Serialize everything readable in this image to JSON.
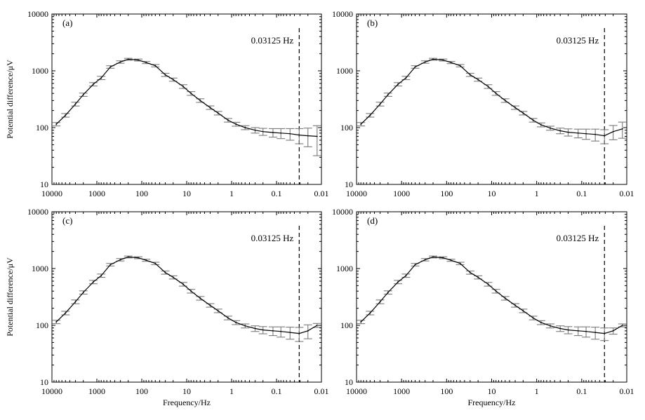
{
  "figure": {
    "ylabel": "Potential difference/μV",
    "xlabel": "Frequency/Hz"
  },
  "chart_data": [
    {
      "type": "line",
      "panel_label": "(a)",
      "xscale": "log",
      "yscale": "log",
      "xlim": [
        10000,
        0.01
      ],
      "ylim": [
        10,
        10000
      ],
      "xticks": [
        "10000",
        "1000",
        "100",
        "10",
        "1",
        "0.1",
        "0.01"
      ],
      "yticks": [
        "10",
        "100",
        "1000",
        "10000"
      ],
      "ylabel": "Potential difference/μV",
      "xlabel": "",
      "marker": {
        "x": 0.03125,
        "label": "0.03125 Hz"
      },
      "series": [
        {
          "x": [
            8000,
            5000,
            3000,
            2000,
            1200,
            800,
            500,
            300,
            200,
            120,
            80,
            50,
            30,
            20,
            12,
            8,
            5,
            3,
            2,
            1.2,
            0.8,
            0.5,
            0.3,
            0.2,
            0.12,
            0.08,
            0.05,
            0.03125,
            0.02,
            0.0125
          ],
          "y": [
            115,
            165,
            260,
            380,
            580,
            750,
            1170,
            1430,
            1600,
            1550,
            1400,
            1230,
            850,
            700,
            530,
            400,
            300,
            225,
            180,
            135,
            115,
            100,
            90,
            85,
            82,
            80,
            78,
            74,
            72,
            70
          ],
          "err": [
            8,
            12,
            20,
            25,
            40,
            50,
            60,
            70,
            60,
            60,
            60,
            60,
            55,
            45,
            40,
            30,
            22,
            16,
            13,
            10,
            9,
            8,
            10,
            12,
            14,
            16,
            18,
            22,
            26,
            38
          ]
        }
      ]
    },
    {
      "type": "line",
      "panel_label": "(b)",
      "xscale": "log",
      "yscale": "log",
      "xlim": [
        10000,
        0.01
      ],
      "ylim": [
        10,
        10000
      ],
      "xticks": [
        "10000",
        "1000",
        "100",
        "10",
        "1",
        "0.1",
        "0.01"
      ],
      "yticks": [
        "10",
        "100",
        "1000",
        "10000"
      ],
      "ylabel": "",
      "xlabel": "",
      "marker": {
        "x": 0.03125,
        "label": "0.03125 Hz"
      },
      "series": [
        {
          "x": [
            8000,
            5000,
            3000,
            2000,
            1200,
            800,
            500,
            300,
            200,
            120,
            80,
            50,
            30,
            20,
            12,
            8,
            5,
            3,
            2,
            1.2,
            0.8,
            0.5,
            0.3,
            0.2,
            0.12,
            0.08,
            0.05,
            0.03125,
            0.02,
            0.0125
          ],
          "y": [
            115,
            165,
            260,
            380,
            580,
            750,
            1170,
            1430,
            1600,
            1550,
            1400,
            1230,
            850,
            700,
            530,
            400,
            300,
            225,
            180,
            135,
            112,
            98,
            88,
            83,
            80,
            78,
            76,
            72,
            85,
            95
          ],
          "err": [
            8,
            12,
            20,
            25,
            40,
            50,
            60,
            70,
            60,
            60,
            60,
            60,
            55,
            45,
            40,
            30,
            22,
            16,
            13,
            10,
            9,
            8,
            10,
            12,
            14,
            16,
            18,
            20,
            24,
            30
          ]
        }
      ]
    },
    {
      "type": "line",
      "panel_label": "(c)",
      "xscale": "log",
      "yscale": "log",
      "xlim": [
        10000,
        0.01
      ],
      "ylim": [
        10,
        10000
      ],
      "xticks": [
        "10000",
        "1000",
        "100",
        "10",
        "1",
        "0.1",
        "0.01"
      ],
      "yticks": [
        "10",
        "100",
        "1000",
        "10000"
      ],
      "ylabel": "Potential difference/μV",
      "xlabel": "Frequency/Hz",
      "marker": {
        "x": 0.03125,
        "label": "0.03125 Hz"
      },
      "series": [
        {
          "x": [
            8000,
            5000,
            3000,
            2000,
            1200,
            800,
            500,
            300,
            200,
            120,
            80,
            50,
            30,
            20,
            12,
            8,
            5,
            3,
            2,
            1.2,
            0.8,
            0.5,
            0.3,
            0.2,
            0.12,
            0.08,
            0.05,
            0.03125,
            0.02,
            0.0125
          ],
          "y": [
            115,
            165,
            260,
            380,
            580,
            750,
            1170,
            1430,
            1600,
            1550,
            1400,
            1230,
            850,
            700,
            530,
            400,
            300,
            225,
            180,
            135,
            112,
            98,
            88,
            83,
            80,
            78,
            75,
            72,
            80,
            100
          ],
          "err": [
            8,
            12,
            20,
            25,
            40,
            50,
            60,
            70,
            60,
            60,
            60,
            60,
            55,
            45,
            40,
            30,
            22,
            16,
            13,
            10,
            9,
            8,
            10,
            12,
            14,
            16,
            18,
            20,
            22,
            8
          ]
        }
      ]
    },
    {
      "type": "line",
      "panel_label": "(d)",
      "xscale": "log",
      "yscale": "log",
      "xlim": [
        10000,
        0.01
      ],
      "ylim": [
        10,
        10000
      ],
      "xticks": [
        "10000",
        "1000",
        "100",
        "10",
        "1",
        "0.1",
        "0.01"
      ],
      "yticks": [
        "10",
        "100",
        "1000",
        "10000"
      ],
      "ylabel": "",
      "xlabel": "Frequency/Hz",
      "marker": {
        "x": 0.03125,
        "label": "0.03125 Hz"
      },
      "series": [
        {
          "x": [
            8000,
            5000,
            3000,
            2000,
            1200,
            800,
            500,
            300,
            200,
            120,
            80,
            50,
            30,
            20,
            12,
            8,
            5,
            3,
            2,
            1.2,
            0.8,
            0.5,
            0.3,
            0.2,
            0.12,
            0.08,
            0.05,
            0.03125,
            0.02,
            0.0125
          ],
          "y": [
            115,
            165,
            260,
            380,
            580,
            750,
            1170,
            1430,
            1600,
            1550,
            1400,
            1230,
            850,
            700,
            530,
            400,
            300,
            225,
            180,
            135,
            112,
            98,
            88,
            83,
            80,
            78,
            75,
            72,
            80,
            100
          ],
          "err": [
            8,
            12,
            20,
            25,
            40,
            50,
            60,
            70,
            60,
            60,
            60,
            60,
            55,
            45,
            40,
            30,
            22,
            16,
            13,
            10,
            9,
            8,
            10,
            12,
            14,
            16,
            18,
            18,
            10,
            6
          ]
        }
      ]
    }
  ]
}
